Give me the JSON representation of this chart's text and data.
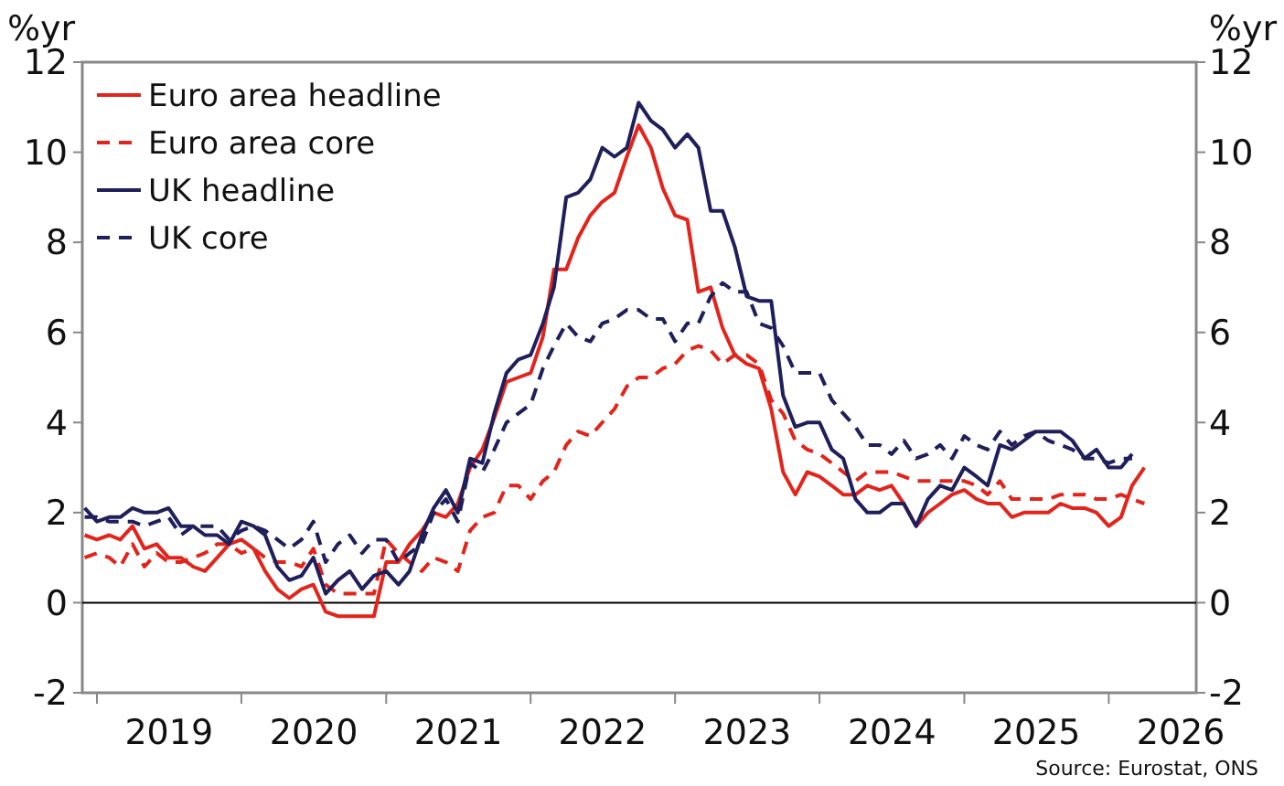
{
  "chart_data": {
    "type": "line",
    "ylabel": "%yr",
    "y2label": "%yr",
    "x": [
      "2018-12",
      "2019-01",
      "2019-02",
      "2019-03",
      "2019-04",
      "2019-05",
      "2019-06",
      "2019-07",
      "2019-08",
      "2019-09",
      "2019-10",
      "2019-11",
      "2019-12",
      "2020-01",
      "2020-02",
      "2020-03",
      "2020-04",
      "2020-05",
      "2020-06",
      "2020-07",
      "2020-08",
      "2020-09",
      "2020-10",
      "2020-11",
      "2020-12",
      "2021-01",
      "2021-02",
      "2021-03",
      "2021-04",
      "2021-05",
      "2021-06",
      "2021-07",
      "2021-08",
      "2021-09",
      "2021-10",
      "2021-11",
      "2021-12",
      "2022-01",
      "2022-02",
      "2022-03",
      "2022-04",
      "2022-05",
      "2022-06",
      "2022-07",
      "2022-08",
      "2022-09",
      "2022-10",
      "2022-11",
      "2022-12",
      "2023-01",
      "2023-02",
      "2023-03",
      "2023-04",
      "2023-05",
      "2023-06",
      "2023-07",
      "2023-08",
      "2023-09",
      "2023-10",
      "2023-11",
      "2023-12",
      "2024-01",
      "2024-02",
      "2024-03",
      "2024-04",
      "2024-05",
      "2024-06",
      "2024-07",
      "2024-08",
      "2024-09",
      "2024-10",
      "2024-11",
      "2024-12",
      "2025-01",
      "2025-02",
      "2025-03",
      "2025-04",
      "2025-05",
      "2025-06",
      "2025-07",
      "2025-08",
      "2025-09",
      "2025-10",
      "2025-11",
      "2025-12",
      "2026-01",
      "2026-02",
      "2026-03",
      "2026-04"
    ],
    "series": [
      {
        "name": "Euro area headline",
        "color": "#e3241b",
        "line_style": "solid",
        "values": [
          1.5,
          1.4,
          1.5,
          1.4,
          1.7,
          1.2,
          1.3,
          1.0,
          1.0,
          0.8,
          0.7,
          1.0,
          1.3,
          1.4,
          1.2,
          0.7,
          0.3,
          0.1,
          0.3,
          0.4,
          -0.2,
          -0.3,
          -0.3,
          -0.3,
          -0.3,
          0.9,
          0.9,
          1.3,
          1.6,
          2.0,
          1.9,
          2.2,
          3.0,
          3.4,
          4.1,
          4.9,
          5.0,
          5.1,
          5.9,
          7.4,
          7.4,
          8.1,
          8.6,
          8.9,
          9.1,
          9.9,
          10.6,
          10.1,
          9.2,
          8.6,
          8.5,
          6.9,
          7.0,
          6.1,
          5.5,
          5.3,
          5.2,
          4.3,
          2.9,
          2.4,
          2.9,
          2.8,
          2.6,
          2.4,
          2.4,
          2.6,
          2.5,
          2.6,
          2.2,
          1.7,
          2.0,
          2.2,
          2.4,
          2.5,
          2.3,
          2.2,
          2.2,
          1.9,
          2.0,
          2.0,
          2.0,
          2.2,
          2.1,
          2.1,
          2.0,
          1.7,
          1.9,
          2.6,
          3.0
        ]
      },
      {
        "name": "Euro area core",
        "color": "#e3241b",
        "line_style": "dashed",
        "values": [
          1.0,
          1.1,
          1.0,
          0.8,
          1.3,
          0.8,
          1.1,
          0.9,
          0.9,
          1.0,
          1.1,
          1.3,
          1.3,
          1.1,
          1.2,
          1.0,
          0.9,
          0.9,
          0.8,
          1.2,
          0.4,
          0.2,
          0.2,
          0.2,
          0.2,
          1.4,
          1.1,
          0.9,
          0.7,
          1.0,
          0.9,
          0.7,
          1.6,
          1.9,
          2.0,
          2.6,
          2.6,
          2.3,
          2.7,
          2.9,
          3.5,
          3.8,
          3.7,
          4.0,
          4.3,
          4.8,
          5.0,
          5.0,
          5.2,
          5.3,
          5.6,
          5.7,
          5.6,
          5.3,
          5.5,
          5.5,
          5.3,
          4.5,
          4.2,
          3.6,
          3.4,
          3.3,
          3.1,
          2.9,
          2.7,
          2.9,
          2.9,
          2.9,
          2.8,
          2.7,
          2.7,
          2.7,
          2.7,
          2.7,
          2.6,
          2.4,
          2.7,
          2.3,
          2.3,
          2.3,
          2.3,
          2.4,
          2.4,
          2.4,
          2.3,
          2.3,
          2.4,
          2.3,
          2.2
        ]
      },
      {
        "name": "UK headline",
        "color": "#1f1f5c",
        "line_style": "solid",
        "values": [
          2.1,
          1.8,
          1.9,
          1.9,
          2.1,
          2.0,
          2.0,
          2.1,
          1.7,
          1.7,
          1.5,
          1.5,
          1.3,
          1.8,
          1.7,
          1.5,
          0.8,
          0.5,
          0.6,
          1.0,
          0.2,
          0.5,
          0.7,
          0.3,
          0.6,
          0.7,
          0.4,
          0.7,
          1.5,
          2.1,
          2.5,
          2.0,
          3.2,
          3.1,
          4.2,
          5.1,
          5.4,
          5.5,
          6.2,
          7.0,
          9.0,
          9.1,
          9.4,
          10.1,
          9.9,
          10.1,
          11.1,
          10.7,
          10.5,
          10.1,
          10.4,
          10.1,
          8.7,
          8.7,
          7.9,
          6.8,
          6.7,
          6.7,
          4.6,
          3.9,
          4.0,
          4.0,
          3.4,
          3.2,
          2.3,
          2.0,
          2.0,
          2.2,
          2.2,
          1.7,
          2.3,
          2.6,
          2.5,
          3.0,
          2.8,
          2.6,
          3.5,
          3.4,
          3.6,
          3.8,
          3.8,
          3.8,
          3.6,
          3.2,
          3.4,
          3.0,
          3.0,
          3.3,
          null
        ]
      },
      {
        "name": "UK core",
        "color": "#1f1f5c",
        "line_style": "dashed",
        "values": [
          1.9,
          1.9,
          1.8,
          1.8,
          1.8,
          1.7,
          1.8,
          1.9,
          1.5,
          1.7,
          1.7,
          1.7,
          1.4,
          1.6,
          1.7,
          1.6,
          1.4,
          1.2,
          1.4,
          1.8,
          0.9,
          1.3,
          1.5,
          1.1,
          1.4,
          1.4,
          0.9,
          1.1,
          1.3,
          2.0,
          2.3,
          1.8,
          3.1,
          2.9,
          3.4,
          4.0,
          4.2,
          4.4,
          5.2,
          5.7,
          6.2,
          5.9,
          5.8,
          6.2,
          6.3,
          6.5,
          6.5,
          6.3,
          6.3,
          5.8,
          6.2,
          6.2,
          6.8,
          7.1,
          6.9,
          6.9,
          6.2,
          6.1,
          5.7,
          5.1,
          5.1,
          5.1,
          4.5,
          4.2,
          3.9,
          3.5,
          3.5,
          3.3,
          3.6,
          3.2,
          3.3,
          3.5,
          3.2,
          3.7,
          3.5,
          3.4,
          3.8,
          3.5,
          3.7,
          3.8,
          3.6,
          3.5,
          3.4,
          3.2,
          3.2,
          3.1,
          3.2,
          3.2,
          null
        ]
      }
    ],
    "xlim": [
      "2018-11-25",
      "2026-08-10"
    ],
    "xticks": [
      {
        "value": "2019-01-01",
        "label": null
      },
      {
        "value": "2019-07-02",
        "label": "2019"
      },
      {
        "value": "2020-01-01",
        "label": null
      },
      {
        "value": "2020-07-02",
        "label": "2020"
      },
      {
        "value": "2021-01-01",
        "label": null
      },
      {
        "value": "2021-07-02",
        "label": "2021"
      },
      {
        "value": "2022-01-01",
        "label": null
      },
      {
        "value": "2022-07-02",
        "label": "2022"
      },
      {
        "value": "2023-01-01",
        "label": null
      },
      {
        "value": "2023-07-02",
        "label": "2023"
      },
      {
        "value": "2024-01-01",
        "label": null
      },
      {
        "value": "2024-07-02",
        "label": "2024"
      },
      {
        "value": "2025-01-01",
        "label": null
      },
      {
        "value": "2025-07-02",
        "label": "2025"
      },
      {
        "value": "2026-01-01",
        "label": null
      },
      {
        "value": "2026-07-02",
        "label": "2026"
      }
    ],
    "ylim": [
      -2,
      12
    ],
    "yticks": [
      -2,
      0,
      2,
      4,
      6,
      8,
      10,
      12
    ],
    "y2lim": [
      -2,
      12
    ],
    "y2ticks": [
      -2,
      0,
      2,
      4,
      6,
      8,
      10,
      12
    ],
    "ref_lines": [
      {
        "axis": "y",
        "value": 0,
        "color": "#000000"
      }
    ],
    "grid": false,
    "legend": "top left",
    "annotations": [
      "Source: Eurostat, ONS"
    ]
  }
}
